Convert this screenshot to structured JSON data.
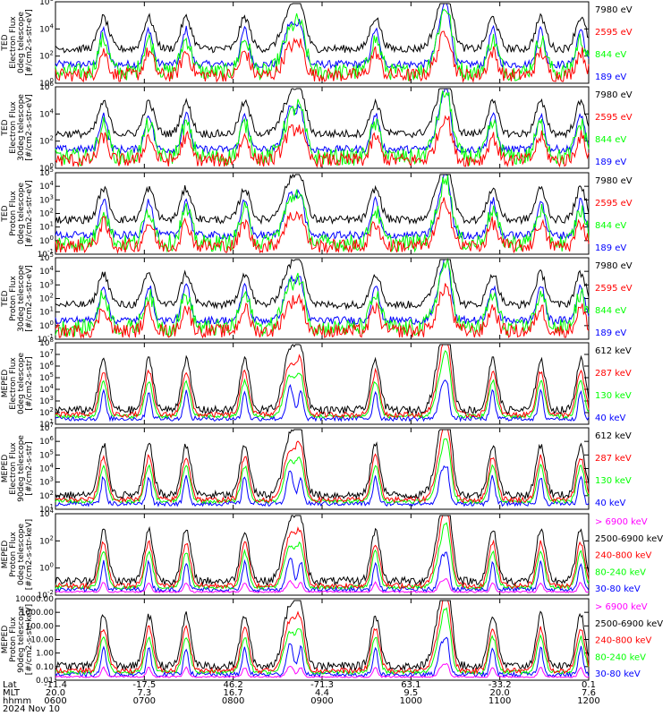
{
  "colors": {
    "blue": "#0000ff",
    "red": "#ff0000",
    "green": "#00ff00",
    "black": "#000000",
    "magenta": "#ff00ff"
  },
  "chart_data": [
    {
      "type": "line",
      "instrument": "TED",
      "ylabel": [
        "TED",
        "Electron Flux",
        "0deg telescope",
        "[#/cm2-s-str-eV]"
      ],
      "yscale": "log",
      "ylim": [
        1,
        1000000
      ],
      "yticks": [
        "10^0",
        "10^2",
        "10^4",
        "10^6"
      ],
      "legend_placement": "right",
      "series": [
        {
          "name": "7980 eV",
          "color": "#000000"
        },
        {
          "name": "2595 eV",
          "color": "#ff0000"
        },
        {
          "name": "844 eV",
          "color": "#00ff00"
        },
        {
          "name": "189 eV",
          "color": "#0000ff"
        }
      ]
    },
    {
      "type": "line",
      "instrument": "TED",
      "ylabel": [
        "TED",
        "Electron Flux",
        "30deg telescope",
        "[#/cm2-s-str-eV]"
      ],
      "yscale": "log",
      "ylim": [
        1,
        1000000
      ],
      "yticks": [
        "10^0",
        "10^2",
        "10^4",
        "10^6"
      ],
      "legend_placement": "right",
      "series": [
        {
          "name": "7980 eV",
          "color": "#000000"
        },
        {
          "name": "2595 eV",
          "color": "#ff0000"
        },
        {
          "name": "844 eV",
          "color": "#00ff00"
        },
        {
          "name": "189 eV",
          "color": "#0000ff"
        }
      ]
    },
    {
      "type": "line",
      "instrument": "TED",
      "ylabel": [
        "TED",
        "Proton Flux",
        "0deg telescope",
        "[#/cm2-s-str-eV]"
      ],
      "yscale": "log",
      "ylim": [
        0.1,
        100000
      ],
      "yticks": [
        "10^-1",
        "10^0",
        "10^1",
        "10^2",
        "10^3",
        "10^4",
        "10^5"
      ],
      "legend_placement": "right",
      "series": [
        {
          "name": "7980 eV",
          "color": "#000000"
        },
        {
          "name": "2595 eV",
          "color": "#ff0000"
        },
        {
          "name": "844 eV",
          "color": "#00ff00"
        },
        {
          "name": "189 eV",
          "color": "#0000ff"
        }
      ]
    },
    {
      "type": "line",
      "instrument": "TED",
      "ylabel": [
        "TED",
        "Proton Flux",
        "30deg telescope",
        "[#/cm2-s-str-eV]"
      ],
      "yscale": "log",
      "ylim": [
        0.1,
        100000
      ],
      "yticks": [
        "10^-1",
        "10^0",
        "10^1",
        "10^2",
        "10^3",
        "10^4",
        "10^5"
      ],
      "legend_placement": "right",
      "series": [
        {
          "name": "7980 eV",
          "color": "#000000"
        },
        {
          "name": "2595 eV",
          "color": "#ff0000"
        },
        {
          "name": "844 eV",
          "color": "#00ff00"
        },
        {
          "name": "189 eV",
          "color": "#0000ff"
        }
      ]
    },
    {
      "type": "line",
      "instrument": "MEPED",
      "ylabel": [
        "MEPED",
        "Electron Flux",
        "0deg telescope",
        "[#/cm2-s-str]"
      ],
      "yscale": "log",
      "ylim": [
        10,
        100000000
      ],
      "yticks": [
        "10^1",
        "10^2",
        "10^3",
        "10^4",
        "10^5",
        "10^6",
        "10^7",
        "10^8"
      ],
      "legend_placement": "right",
      "series": [
        {
          "name": "612 keV",
          "color": "#000000"
        },
        {
          "name": "287 keV",
          "color": "#ff0000"
        },
        {
          "name": "130 keV",
          "color": "#00ff00"
        },
        {
          "name": "40 keV",
          "color": "#0000ff"
        }
      ]
    },
    {
      "type": "line",
      "instrument": "MEPED",
      "ylabel": [
        "MEPED",
        "Electron Flux",
        "90deg telescope",
        "[#/cm2-s-str]"
      ],
      "yscale": "log",
      "ylim": [
        10,
        10000000
      ],
      "yticks": [
        "10^1",
        "10^2",
        "10^3",
        "10^4",
        "10^5",
        "10^6",
        "10^7"
      ],
      "legend_placement": "right",
      "series": [
        {
          "name": "612 keV",
          "color": "#000000"
        },
        {
          "name": "287 keV",
          "color": "#ff0000"
        },
        {
          "name": "130 keV",
          "color": "#00ff00"
        },
        {
          "name": "40 keV",
          "color": "#0000ff"
        }
      ]
    },
    {
      "type": "line",
      "instrument": "MEPED",
      "ylabel": [
        "MEPED",
        "Proton Flux",
        "0deg telescope",
        "[#/cm2-s-str-keV]"
      ],
      "yscale": "log",
      "ylim": [
        0.01,
        100000
      ],
      "yticks": [
        "10^-2",
        "10^0",
        "10^2",
        "10^4"
      ],
      "legend_placement": "right",
      "series": [
        {
          "name": "> 6900 keV",
          "color": "#ff00ff"
        },
        {
          "name": "2500-6900 keV",
          "color": "#000000"
        },
        {
          "name": "240-800 keV",
          "color": "#ff0000"
        },
        {
          "name": "80-240 keV",
          "color": "#00ff00"
        },
        {
          "name": "30-80 keV",
          "color": "#0000ff"
        }
      ]
    },
    {
      "type": "line",
      "instrument": "MEPED",
      "ylabel": [
        "MEPED",
        "Proton Flux",
        "90deg telescope",
        "[#/cm2-s-str-keV]"
      ],
      "yscale": "log",
      "ylim": [
        0.01,
        10000
      ],
      "yticks": [
        "10000.00",
        "1000.00",
        "100.00",
        "10.00",
        "1.00",
        "0.10",
        "0.01"
      ],
      "legend_placement": "right",
      "series": [
        {
          "name": "> 6900 keV",
          "color": "#ff00ff"
        },
        {
          "name": "2500-6900 keV",
          "color": "#000000"
        },
        {
          "name": "240-800 keV",
          "color": "#ff0000"
        },
        {
          "name": "80-240 keV",
          "color": "#00ff00"
        },
        {
          "name": "30-80 keV",
          "color": "#0000ff"
        }
      ]
    }
  ],
  "xaxis": {
    "row_labels": [
      "Lat",
      "MLT",
      "hhmm"
    ],
    "lat": [
      "-11.4",
      "-17.5",
      "46.2",
      "-71.3",
      "63.1",
      "-33.2",
      "0.1"
    ],
    "mlt": [
      "20.0",
      "7.3",
      "16.7",
      "4.4",
      "9.5",
      "20.0",
      "7.6"
    ],
    "hhmm": [
      "0600",
      "0700",
      "0800",
      "0900",
      "1000",
      "1100",
      "1200"
    ],
    "date": "2024 Nov 10"
  }
}
